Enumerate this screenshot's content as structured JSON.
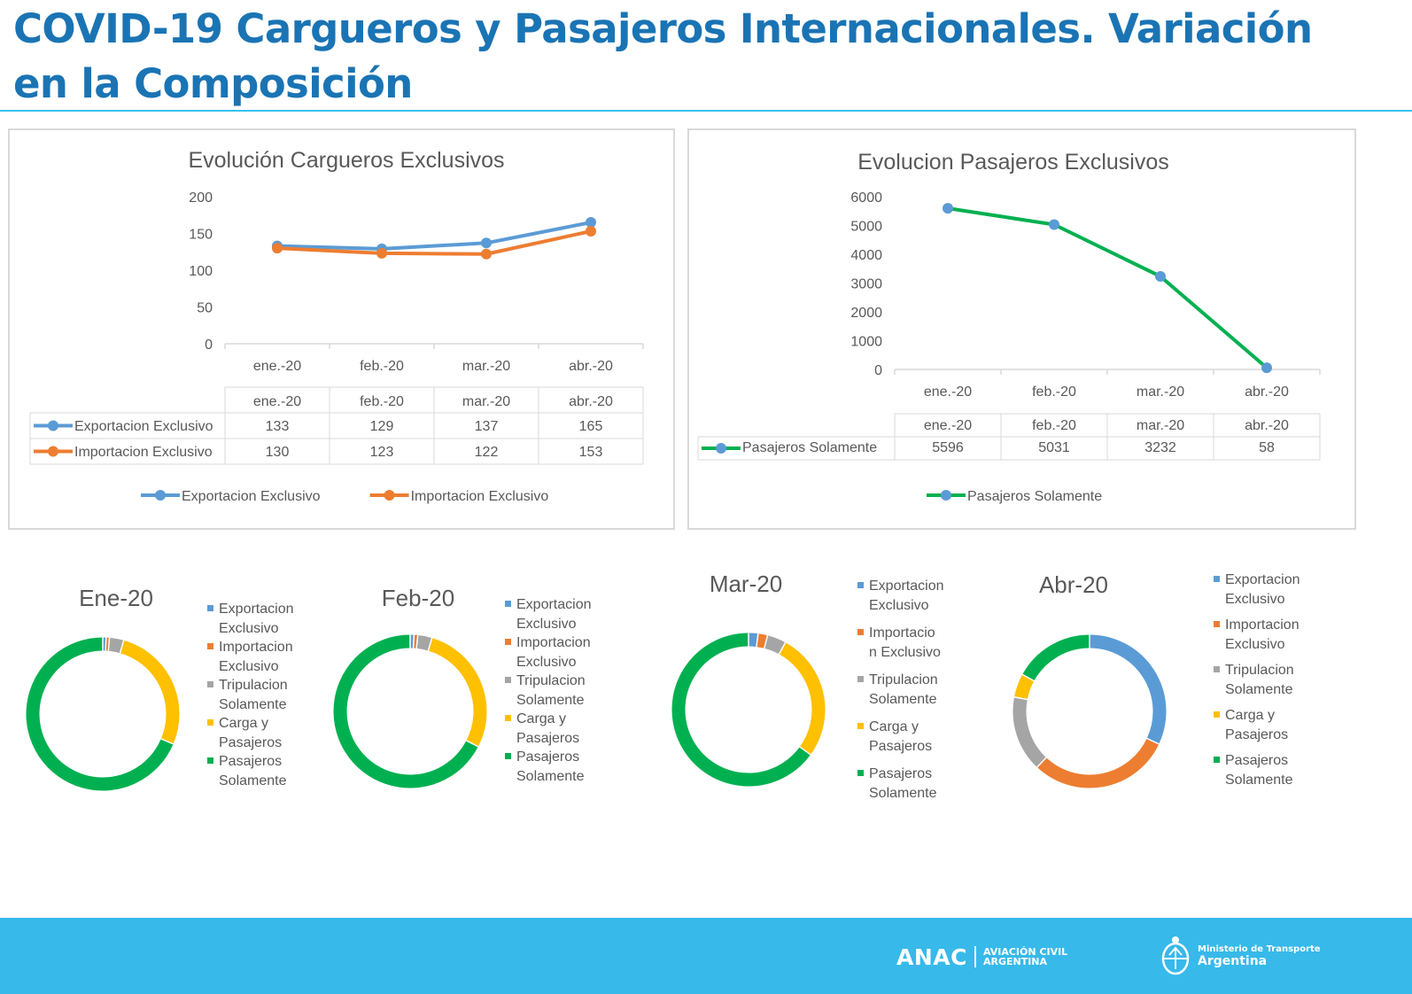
{
  "page": {
    "title": "COVID-19 Cargueros y Pasajeros Internacionales. Variación en la Composición"
  },
  "colors": {
    "title": "#1a74b4",
    "rule": "#37c3ee",
    "footer": "#37b9ea",
    "export": "#5b9bd5",
    "import": "#ed7d31",
    "crew": "#a5a5a5",
    "cargo_pax": "#ffc000",
    "pax": "#00b050"
  },
  "footer": {
    "anac_word": "ANAC",
    "anac_line1": "AVIACIÓN CIVIL",
    "anac_line2": "ARGENTINA",
    "ministry_line1": "Ministerio de Transporte",
    "ministry_line2": "Argentina",
    "icons": [
      "anac-logo-icon",
      "argentina-seal-icon"
    ]
  },
  "chart_data": [
    {
      "type": "line",
      "title": "Evolución Cargueros Exclusivos",
      "categories": [
        "ene.-20",
        "feb.-20",
        "mar.-20",
        "abr.-20"
      ],
      "series": [
        {
          "name": "Exportacion Exclusivo",
          "values": [
            133,
            129,
            137,
            165
          ],
          "color": "#5b9bd5"
        },
        {
          "name": "Importacion Exclusivo",
          "values": [
            130,
            123,
            122,
            153
          ],
          "color": "#ed7d31"
        }
      ],
      "yticks": [
        "0",
        "50",
        "100",
        "150",
        "200"
      ],
      "ylim": [
        0,
        200
      ],
      "data_table": true,
      "legend": "bottom"
    },
    {
      "type": "line",
      "title": "Evolucion Pasajeros Exclusivos",
      "categories": [
        "ene.-20",
        "feb.-20",
        "mar.-20",
        "abr.-20"
      ],
      "series": [
        {
          "name": "Pasajeros Solamente",
          "values": [
            5596,
            5031,
            3232,
            58
          ],
          "color": "#00b050",
          "marker": "#5b9bd5"
        }
      ],
      "yticks": [
        "0",
        "1000",
        "2000",
        "3000",
        "4000",
        "5000",
        "6000"
      ],
      "ylim": [
        0,
        6000
      ],
      "data_table": true,
      "legend": "bottom"
    },
    {
      "type": "pie",
      "donut": true,
      "title": "Ene-20",
      "slices": [
        {
          "name": "Exportacion Exclusivo",
          "legend_lines": [
            "Exportacion",
            "Exclusivo"
          ],
          "value": 0.007,
          "color": "#5b9bd5"
        },
        {
          "name": "Importacion Exclusivo",
          "legend_lines": [
            "Importacion",
            "Exclusivo"
          ],
          "value": 0.007,
          "color": "#ed7d31"
        },
        {
          "name": "Tripulacion Solamente",
          "legend_lines": [
            "Tripulacion",
            "Solamente"
          ],
          "value": 0.03,
          "color": "#a5a5a5"
        },
        {
          "name": "Carga y Pasajeros",
          "legend_lines": [
            "Carga y",
            "Pasajeros"
          ],
          "value": 0.27,
          "color": "#ffc000"
        },
        {
          "name": "Pasajeros Solamente",
          "legend_lines": [
            "Pasajeros",
            "Solamente"
          ],
          "value": 0.686,
          "color": "#00b050"
        }
      ],
      "legend": "right"
    },
    {
      "type": "pie",
      "donut": true,
      "title": "Feb-20",
      "slices": [
        {
          "name": "Exportacion Exclusivo",
          "legend_lines": [
            "Exportacion",
            "Exclusivo"
          ],
          "value": 0.008,
          "color": "#5b9bd5"
        },
        {
          "name": "Importacion Exclusivo",
          "legend_lines": [
            "Importacion",
            "Exclusivo"
          ],
          "value": 0.008,
          "color": "#ed7d31"
        },
        {
          "name": "Tripulacion Solamente",
          "legend_lines": [
            "Tripulacion",
            "Solamente"
          ],
          "value": 0.03,
          "color": "#a5a5a5"
        },
        {
          "name": "Carga y Pasajeros",
          "legend_lines": [
            "Carga y",
            "Pasajeros"
          ],
          "value": 0.28,
          "color": "#ffc000"
        },
        {
          "name": "Pasajeros Solamente",
          "legend_lines": [
            "Pasajeros",
            "Solamente"
          ],
          "value": 0.674,
          "color": "#00b050"
        }
      ],
      "legend": "right"
    },
    {
      "type": "pie",
      "donut": true,
      "title": "Mar-20",
      "slices": [
        {
          "name": "Exportacion Exclusivo",
          "legend_lines": [
            "Exportacion",
            "Exclusivo"
          ],
          "value": 0.02,
          "color": "#5b9bd5"
        },
        {
          "name": "Importacion Exclusivo",
          "legend_lines": [
            "Importacio",
            "n Exclusivo"
          ],
          "value": 0.02,
          "color": "#ed7d31"
        },
        {
          "name": "Tripulacion Solamente",
          "legend_lines": [
            "Tripulacion",
            "Solamente"
          ],
          "value": 0.04,
          "color": "#a5a5a5"
        },
        {
          "name": "Carga y Pasajeros",
          "legend_lines": [
            "Carga y",
            "Pasajeros"
          ],
          "value": 0.27,
          "color": "#ffc000"
        },
        {
          "name": "Pasajeros Solamente",
          "legend_lines": [
            "Pasajeros",
            "Solamente"
          ],
          "value": 0.65,
          "color": "#00b050"
        }
      ],
      "legend": "right"
    },
    {
      "type": "pie",
      "donut": true,
      "title": "Abr-20",
      "slices": [
        {
          "name": "Exportacion Exclusivo",
          "legend_lines": [
            "Exportacion",
            "Exclusivo"
          ],
          "value": 0.32,
          "color": "#5b9bd5"
        },
        {
          "name": "Importacion Exclusivo",
          "legend_lines": [
            "Importacion",
            "Exclusivo"
          ],
          "value": 0.3,
          "color": "#ed7d31"
        },
        {
          "name": "Tripulacion Solamente",
          "legend_lines": [
            "Tripulacion",
            "Solamente"
          ],
          "value": 0.16,
          "color": "#a5a5a5"
        },
        {
          "name": "Carga y Pasajeros",
          "legend_lines": [
            "Carga y",
            "Pasajeros"
          ],
          "value": 0.05,
          "color": "#ffc000"
        },
        {
          "name": "Pasajeros Solamente",
          "legend_lines": [
            "Pasajeros",
            "Solamente"
          ],
          "value": 0.17,
          "color": "#00b050"
        }
      ],
      "legend": "right"
    }
  ]
}
